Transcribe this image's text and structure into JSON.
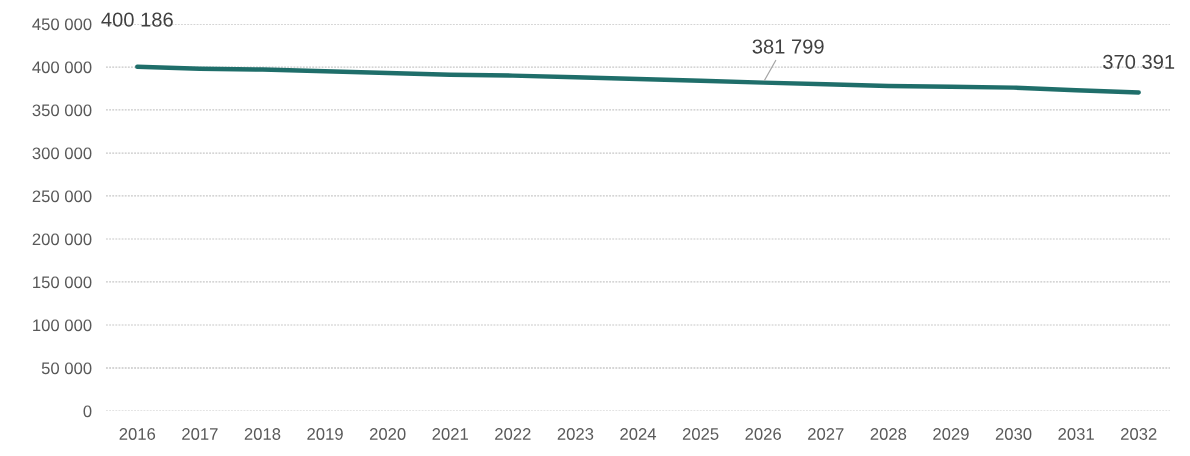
{
  "chart_data": {
    "type": "line",
    "categories": [
      "2016",
      "2017",
      "2018",
      "2019",
      "2020",
      "2021",
      "2022",
      "2023",
      "2024",
      "2025",
      "2026",
      "2027",
      "2028",
      "2029",
      "2030",
      "2031",
      "2032"
    ],
    "series": [
      {
        "color": "#1f6e6a",
        "values": [
          400186,
          398000,
          397000,
          395000,
          393000,
          391000,
          390000,
          388000,
          386000,
          384000,
          381799,
          380000,
          378000,
          377000,
          376000,
          373000,
          370391
        ],
        "value_labels": [
          "400 186",
          null,
          null,
          null,
          null,
          null,
          null,
          null,
          null,
          null,
          "381 799",
          null,
          null,
          null,
          null,
          null,
          "370 391"
        ]
      }
    ],
    "ylim": [
      0,
      450000
    ],
    "yticks": [
      0,
      {
        "value": 50000,
        "label": "50 000"
      },
      {
        "value": 100000,
        "label": "100 000"
      },
      {
        "value": 150000,
        "label": "150 000"
      },
      {
        "value": 200000,
        "label": "200 000"
      },
      {
        "value": 250000,
        "label": "250 000"
      },
      {
        "value": 300000,
        "label": "300 000"
      },
      {
        "value": 350000,
        "label": "350 000"
      },
      {
        "value": 400000,
        "label": "400 000"
      },
      {
        "value": 450000,
        "label": "450 000"
      }
    ],
    "grid": "y",
    "line_style": "solid"
  }
}
